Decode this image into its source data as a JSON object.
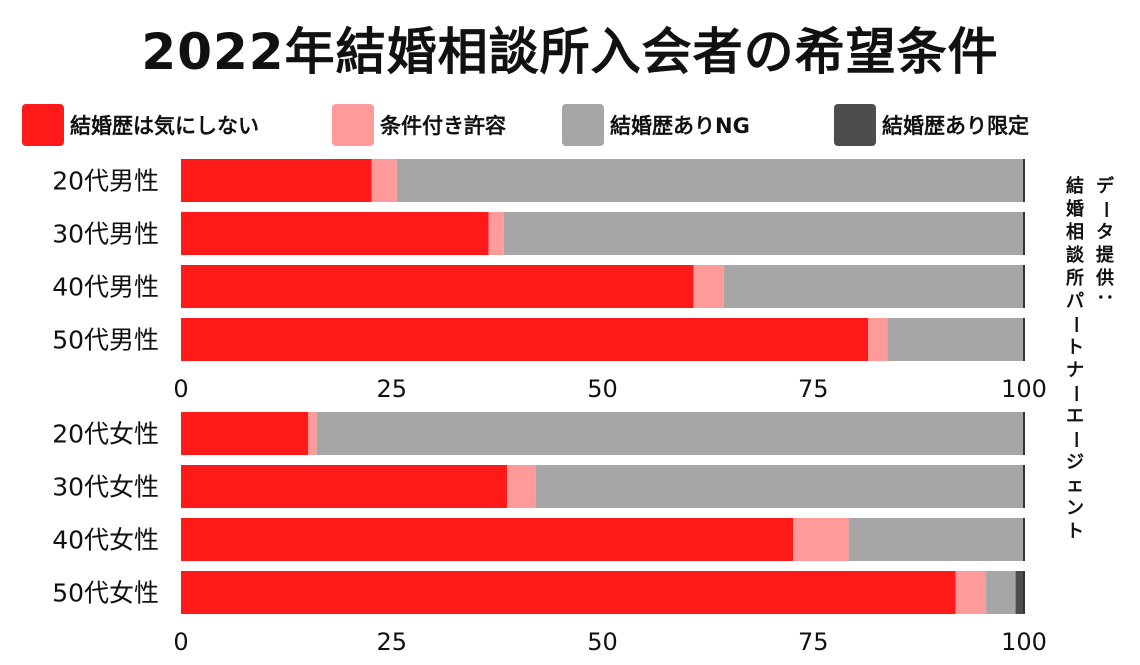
{
  "title": "2022年結婚相談所入会者の希望条件",
  "legend": [
    {
      "label": "結婚歴は気にしない",
      "color": "#ff1a1a"
    },
    {
      "label": "条件付き許容",
      "color": "#ff9a9a"
    },
    {
      "label": "結婚歴ありNG",
      "color": "#a6a6a6"
    },
    {
      "label": "結婚歴あり限定",
      "color": "#4d4d4d"
    }
  ],
  "source_label": "データ提供：",
  "source_name": "結婚相談所パートナーエージェント",
  "chart_data": [
    {
      "type": "bar",
      "orientation": "horizontal",
      "stacked": true,
      "categories": [
        "20代男性",
        "30代男性",
        "40代男性",
        "50代男性"
      ],
      "series": [
        {
          "name": "結婚歴は気にしない",
          "values": [
            22.6,
            36.5,
            60.8,
            81.5
          ]
        },
        {
          "name": "条件付き許容",
          "values": [
            3.0,
            1.8,
            3.6,
            2.3
          ]
        },
        {
          "name": "結婚歴ありNG",
          "values": [
            74.4,
            61.7,
            35.6,
            16.2
          ]
        },
        {
          "name": "結婚歴あり限定",
          "values": [
            0.0,
            0.0,
            0.0,
            0.0
          ]
        }
      ],
      "xlim": [
        0,
        100
      ],
      "xticks": [
        "0",
        "25",
        "50",
        "75",
        "100"
      ]
    },
    {
      "type": "bar",
      "orientation": "horizontal",
      "stacked": true,
      "categories": [
        "20代女性",
        "30代女性",
        "40代女性",
        "50代女性"
      ],
      "series": [
        {
          "name": "結婚歴は気にしない",
          "values": [
            15.1,
            38.7,
            72.6,
            91.9
          ]
        },
        {
          "name": "条件付き許容",
          "values": [
            1.0,
            3.4,
            6.6,
            3.6
          ]
        },
        {
          "name": "結婚歴ありNG",
          "values": [
            83.9,
            57.9,
            20.8,
            3.5
          ]
        },
        {
          "name": "結婚歴あり限定",
          "values": [
            0.0,
            0.0,
            0.0,
            1.0
          ]
        }
      ],
      "xlim": [
        0,
        100
      ],
      "xticks": [
        "0",
        "25",
        "50",
        "75",
        "100"
      ]
    }
  ]
}
